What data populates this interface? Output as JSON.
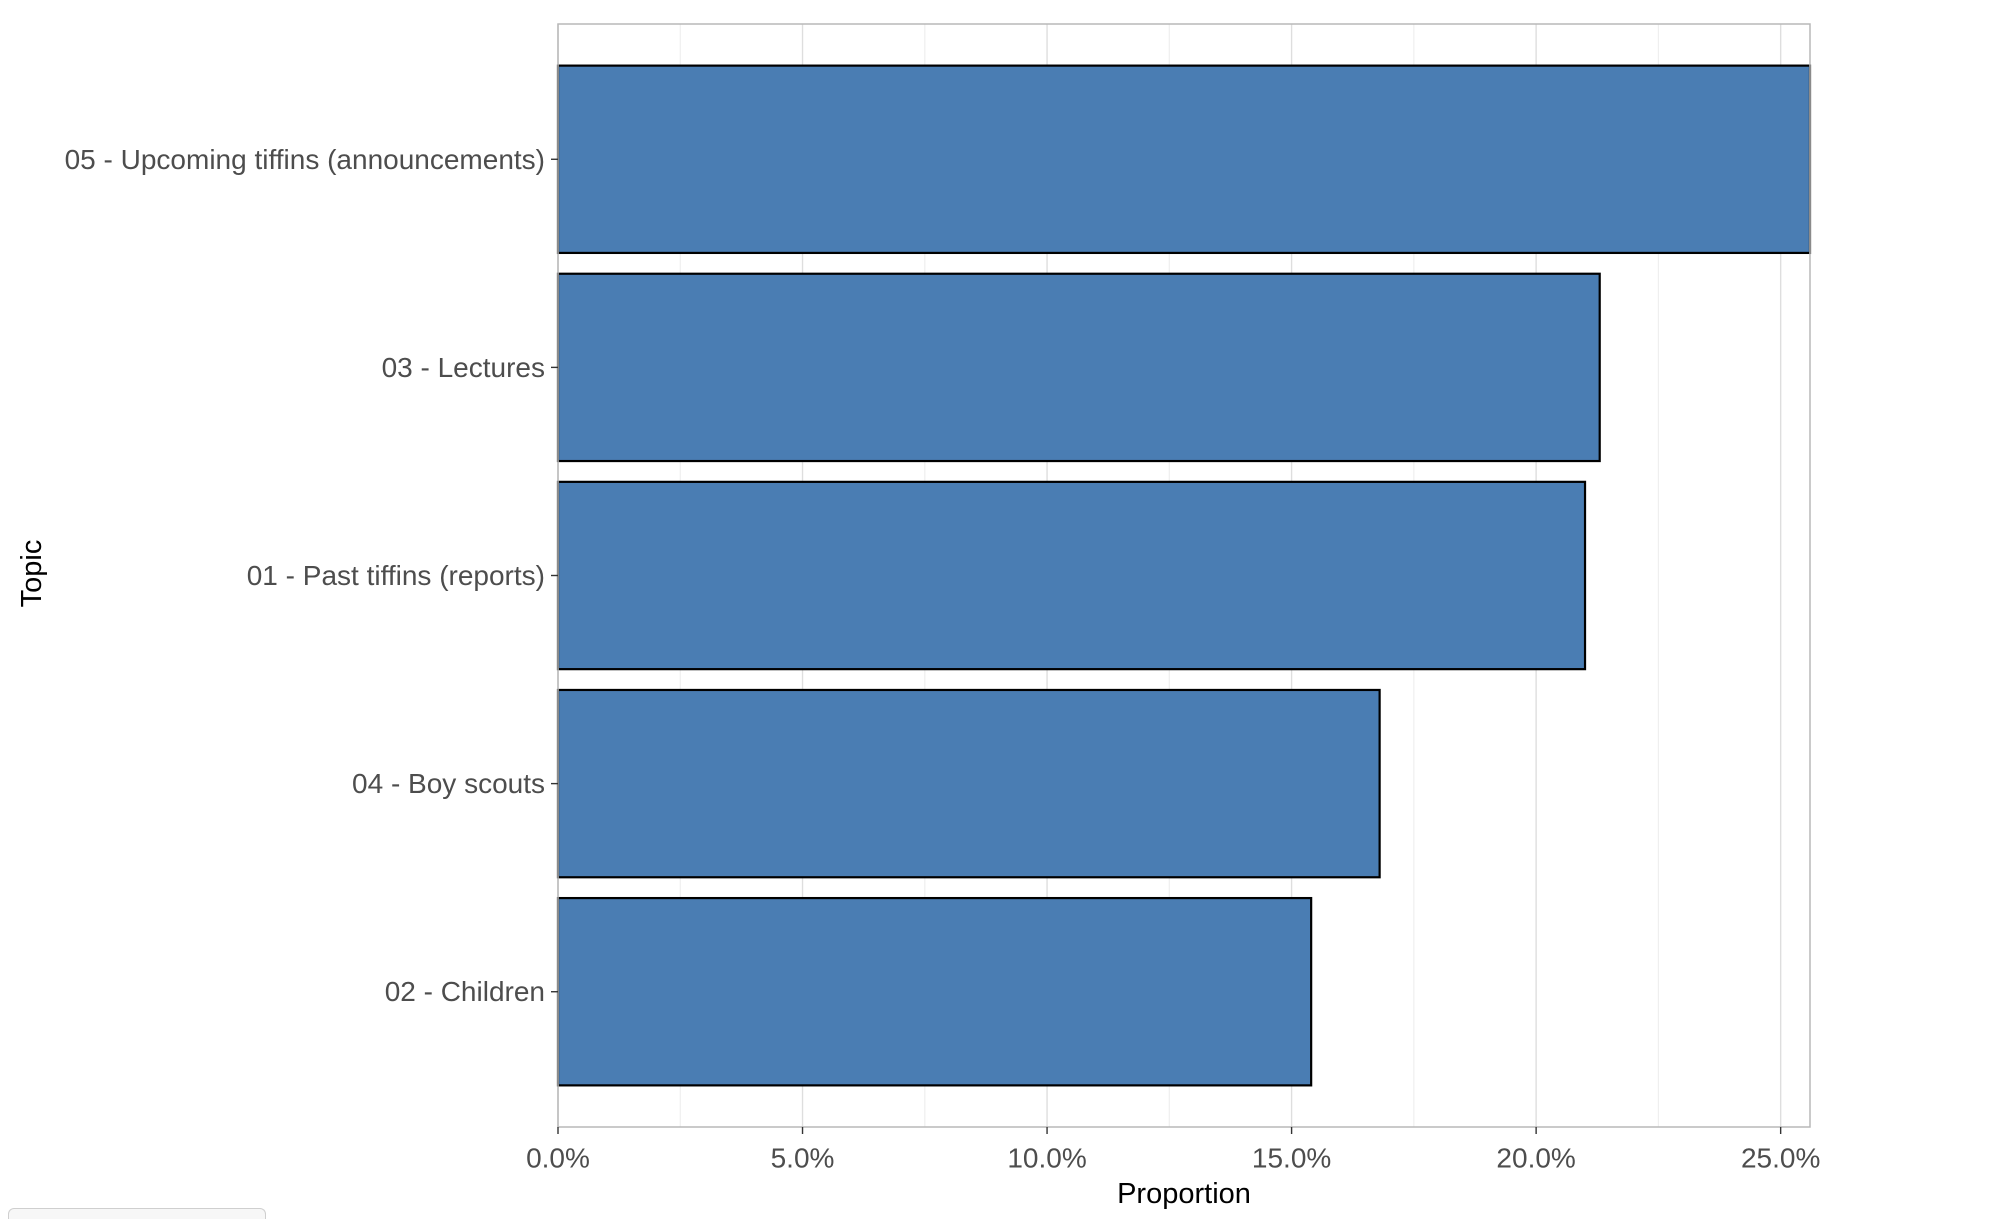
{
  "chart_data": {
    "type": "bar",
    "orientation": "horizontal",
    "categories": [
      "05 - Upcoming tiffins (announcements)",
      "03 - Lectures",
      "01 - Past tiffins (reports)",
      "04 - Boy scouts",
      "02 - Children"
    ],
    "values": [
      25.6,
      21.3,
      21.0,
      16.8,
      15.4
    ],
    "value_unit": "%",
    "xlabel": "Proportion",
    "ylabel": "Topic",
    "xlim": [
      0,
      25.6
    ],
    "x_ticks": [
      "0.0%",
      "5.0%",
      "10.0%",
      "15.0%",
      "20.0%",
      "25.0%"
    ],
    "x_tick_values": [
      0,
      5,
      10,
      15,
      20,
      25
    ],
    "grid": true,
    "legend": "none",
    "colors": {
      "bar_fill": "#4A7DB3",
      "bar_stroke": "#000000",
      "grid_major": "#dedede",
      "grid_minor": "#efefef",
      "panel_border": "#b8b8b8",
      "tick_text": "#4d4d4d"
    }
  }
}
